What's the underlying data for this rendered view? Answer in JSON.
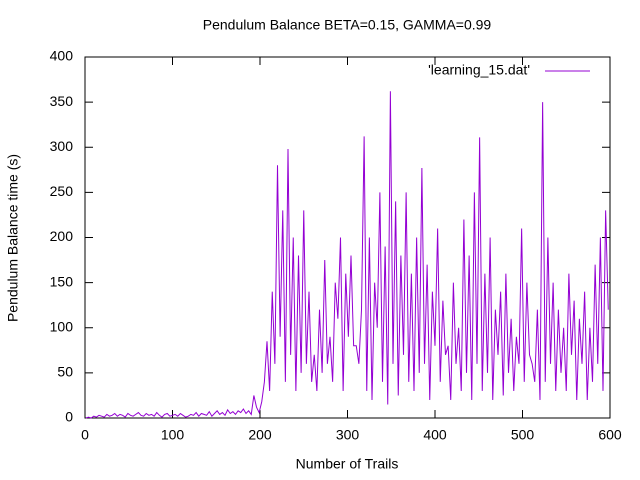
{
  "chart_data": {
    "type": "line",
    "title": "Pendulum Balance BETA=0.15, GAMMA=0.99",
    "xlabel": "Number of Trails",
    "ylabel": "Pendulum Balance time (s)",
    "xlim": [
      0,
      600
    ],
    "ylim": [
      0,
      400
    ],
    "xticks": [
      0,
      100,
      200,
      300,
      400,
      500,
      600
    ],
    "yticks": [
      0,
      50,
      100,
      150,
      200,
      250,
      300,
      350,
      400
    ],
    "grid": false,
    "legend": "top-right",
    "x": [
      1,
      4,
      7,
      10,
      13,
      16,
      19,
      22,
      25,
      28,
      31,
      34,
      37,
      40,
      43,
      46,
      49,
      52,
      55,
      58,
      61,
      64,
      67,
      70,
      73,
      76,
      79,
      82,
      85,
      88,
      91,
      94,
      97,
      100,
      103,
      106,
      109,
      112,
      115,
      118,
      121,
      124,
      127,
      130,
      133,
      136,
      139,
      142,
      145,
      148,
      151,
      154,
      157,
      160,
      163,
      166,
      169,
      172,
      175,
      178,
      181,
      184,
      187,
      190,
      193,
      196,
      199,
      202,
      205,
      208,
      211,
      214,
      217,
      220,
      223,
      226,
      229,
      232,
      235,
      238,
      241,
      244,
      247,
      250,
      253,
      256,
      259,
      262,
      265,
      268,
      271,
      274,
      277,
      280,
      283,
      286,
      289,
      292,
      295,
      298,
      301,
      304,
      307,
      310,
      313,
      316,
      319,
      322,
      325,
      328,
      331,
      334,
      337,
      340,
      343,
      346,
      349,
      352,
      355,
      358,
      361,
      364,
      367,
      370,
      373,
      376,
      379,
      382,
      385,
      388,
      391,
      394,
      397,
      400,
      403,
      406,
      409,
      412,
      415,
      418,
      421,
      424,
      427,
      430,
      433,
      436,
      439,
      442,
      445,
      448,
      451,
      454,
      457,
      460,
      463,
      466,
      469,
      472,
      475,
      478,
      481,
      484,
      487,
      490,
      493,
      496,
      499,
      502,
      505,
      508,
      511,
      514,
      517,
      520,
      523,
      526,
      529,
      532,
      535,
      538,
      541,
      544,
      547,
      550,
      553,
      556,
      559,
      562,
      565,
      568,
      571,
      574,
      577,
      580,
      583,
      586,
      589,
      592,
      595,
      598
    ],
    "series": [
      {
        "name": "'learning_15.dat'",
        "color": "#9400d3",
        "values": [
          0,
          1,
          0,
          2,
          1,
          3,
          2,
          1,
          4,
          2,
          3,
          5,
          2,
          4,
          3,
          1,
          5,
          3,
          2,
          4,
          6,
          3,
          2,
          5,
          3,
          4,
          2,
          6,
          3,
          1,
          4,
          5,
          2,
          3,
          4,
          2,
          5,
          3,
          1,
          2,
          4,
          3,
          6,
          2,
          5,
          4,
          3,
          7,
          2,
          5,
          8,
          4,
          6,
          3,
          9,
          5,
          7,
          4,
          8,
          6,
          10,
          5,
          8,
          4,
          25,
          12,
          6,
          18,
          40,
          85,
          30,
          140,
          60,
          280,
          90,
          230,
          40,
          298,
          70,
          200,
          30,
          180,
          50,
          230,
          60,
          140,
          40,
          70,
          30,
          120,
          50,
          175,
          60,
          90,
          40,
          150,
          110,
          200,
          30,
          160,
          90,
          180,
          80,
          80,
          60,
          120,
          312,
          30,
          200,
          20,
          150,
          100,
          250,
          40,
          190,
          15,
          362,
          60,
          240,
          25,
          180,
          70,
          250,
          40,
          160,
          30,
          200,
          50,
          277,
          60,
          170,
          20,
          140,
          80,
          210,
          40,
          130,
          70,
          80,
          20,
          150,
          60,
          100,
          30,
          220,
          50,
          180,
          20,
          250,
          60,
          311,
          30,
          160,
          50,
          200,
          20,
          120,
          70,
          140,
          25,
          160,
          50,
          110,
          30,
          90,
          60,
          210,
          40,
          150,
          70,
          60,
          40,
          120,
          20,
          350,
          40,
          200,
          60,
          150,
          30,
          120,
          50,
          100,
          30,
          160,
          70,
          130,
          20,
          110,
          60,
          140,
          20,
          100,
          40,
          170,
          60,
          200,
          30,
          230,
          120
        ]
      }
    ]
  }
}
